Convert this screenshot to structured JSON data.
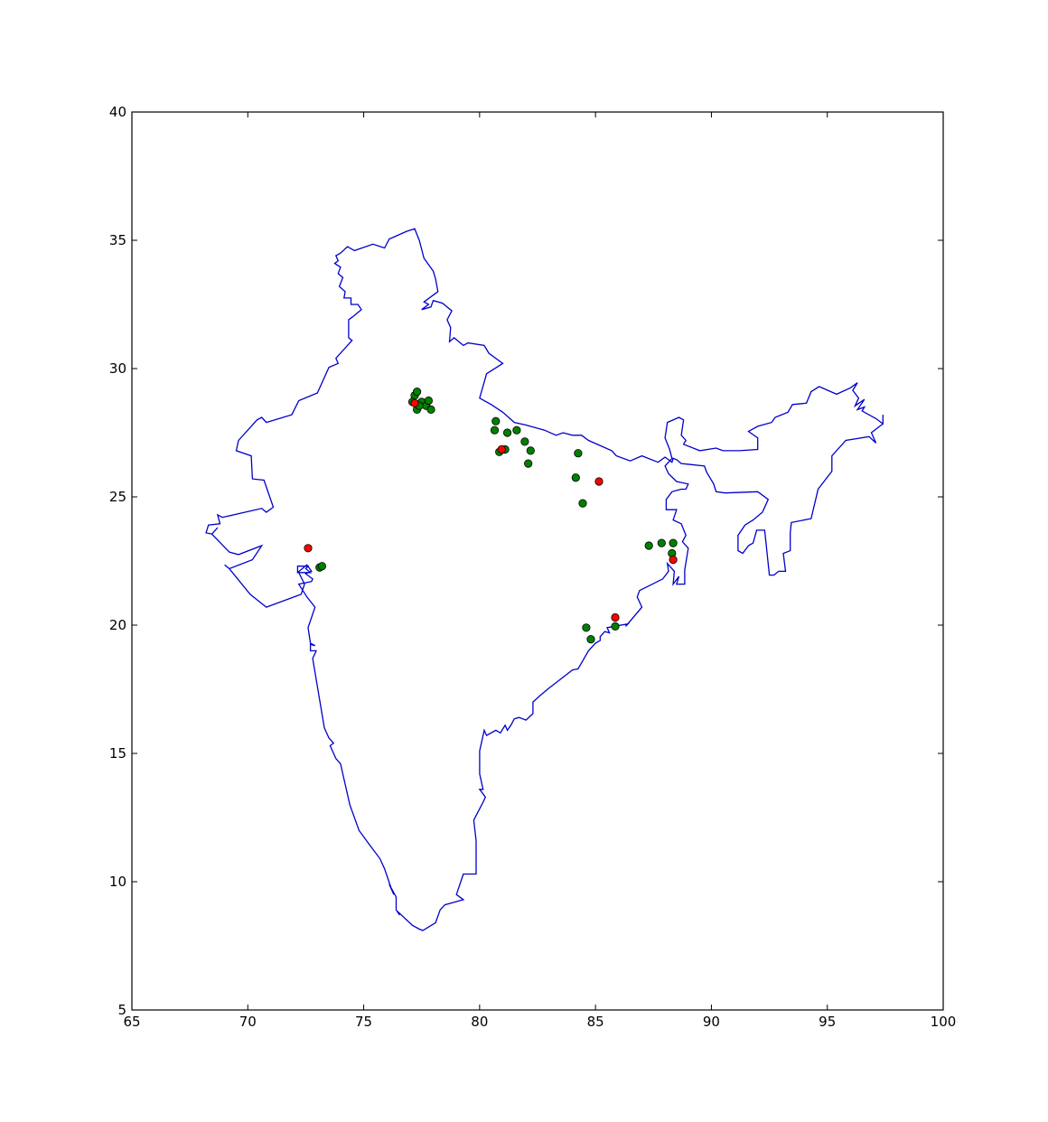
{
  "chart_data": {
    "type": "scatter",
    "xlim": [
      65,
      100
    ],
    "ylim": [
      5,
      40
    ],
    "x_ticks": [
      65,
      70,
      75,
      80,
      85,
      90,
      95,
      100
    ],
    "y_ticks": [
      5,
      10,
      15,
      20,
      25,
      30,
      35,
      40
    ],
    "grid": false,
    "outline_color": "#0000cc",
    "series": [
      {
        "color": "#008000",
        "points": [
          [
            77.2,
            28.95
          ],
          [
            77.3,
            29.1
          ],
          [
            77.1,
            28.7
          ],
          [
            77.3,
            28.4
          ],
          [
            77.5,
            28.7
          ],
          [
            77.7,
            28.55
          ],
          [
            77.8,
            28.75
          ],
          [
            77.9,
            28.4
          ],
          [
            77.4,
            28.55
          ],
          [
            80.7,
            27.95
          ],
          [
            80.65,
            27.6
          ],
          [
            81.2,
            27.5
          ],
          [
            81.6,
            27.6
          ],
          [
            81.95,
            27.15
          ],
          [
            82.2,
            26.8
          ],
          [
            82.1,
            26.3
          ],
          [
            81.1,
            26.85
          ],
          [
            80.85,
            26.75
          ],
          [
            84.25,
            26.7
          ],
          [
            84.15,
            25.75
          ],
          [
            84.45,
            24.75
          ],
          [
            73.1,
            22.25
          ],
          [
            73.2,
            22.3
          ],
          [
            87.3,
            23.1
          ],
          [
            87.85,
            23.2
          ],
          [
            88.35,
            23.2
          ],
          [
            88.3,
            22.8
          ],
          [
            84.6,
            19.9
          ],
          [
            84.8,
            19.45
          ],
          [
            85.85,
            19.95
          ]
        ]
      },
      {
        "color": "#ff0000",
        "points": [
          [
            77.2,
            28.65
          ],
          [
            80.95,
            26.85
          ],
          [
            85.15,
            25.6
          ],
          [
            72.6,
            23.0
          ],
          [
            88.35,
            22.55
          ],
          [
            85.85,
            20.3
          ]
        ]
      }
    ],
    "outline": [
      [
        74.0,
        34.5
      ],
      [
        73.8,
        34.4
      ],
      [
        73.9,
        34.2
      ],
      [
        73.75,
        34.1
      ],
      [
        74.0,
        33.95
      ],
      [
        73.9,
        33.7
      ],
      [
        74.1,
        33.55
      ],
      [
        73.95,
        33.2
      ],
      [
        74.2,
        33.0
      ],
      [
        74.15,
        32.75
      ],
      [
        74.45,
        32.75
      ],
      [
        74.45,
        32.5
      ],
      [
        74.75,
        32.5
      ],
      [
        74.9,
        32.3
      ],
      [
        74.5,
        32.0
      ],
      [
        74.35,
        31.9
      ],
      [
        74.35,
        31.2
      ],
      [
        74.5,
        31.1
      ],
      [
        73.8,
        30.4
      ],
      [
        73.9,
        30.2
      ],
      [
        73.5,
        30.05
      ],
      [
        73.0,
        29.05
      ],
      [
        72.2,
        28.75
      ],
      [
        71.9,
        28.2
      ],
      [
        70.8,
        27.9
      ],
      [
        70.6,
        28.1
      ],
      [
        70.4,
        28.0
      ],
      [
        69.6,
        27.2
      ],
      [
        69.5,
        26.8
      ],
      [
        70.15,
        26.6
      ],
      [
        70.2,
        25.7
      ],
      [
        70.7,
        25.65
      ],
      [
        71.1,
        24.6
      ],
      [
        70.8,
        24.4
      ],
      [
        70.6,
        24.55
      ],
      [
        68.9,
        24.2
      ],
      [
        68.7,
        24.3
      ],
      [
        68.8,
        23.95
      ],
      [
        68.3,
        23.9
      ],
      [
        68.2,
        23.6
      ],
      [
        68.45,
        23.55
      ],
      [
        68.7,
        23.8
      ],
      [
        68.45,
        23.55
      ],
      [
        69.2,
        22.85
      ],
      [
        69.6,
        22.75
      ],
      [
        70.6,
        23.1
      ],
      [
        70.2,
        22.55
      ],
      [
        69.2,
        22.2
      ],
      [
        69.0,
        22.35
      ],
      [
        69.2,
        22.2
      ],
      [
        70.1,
        21.2
      ],
      [
        70.8,
        20.7
      ],
      [
        72.3,
        21.2
      ],
      [
        72.45,
        21.6
      ],
      [
        72.2,
        22.05
      ],
      [
        72.7,
        22.05
      ],
      [
        72.5,
        22.2
      ],
      [
        72.6,
        22.3
      ],
      [
        72.15,
        22.3
      ],
      [
        72.15,
        22.05
      ],
      [
        72.55,
        22.35
      ],
      [
        72.75,
        22.1
      ],
      [
        72.5,
        22.0
      ],
      [
        72.8,
        21.8
      ],
      [
        72.75,
        21.7
      ],
      [
        72.2,
        21.6
      ],
      [
        72.55,
        21.1
      ],
      [
        72.9,
        20.7
      ],
      [
        72.6,
        19.9
      ],
      [
        72.7,
        19.3
      ],
      [
        72.9,
        19.2
      ],
      [
        72.7,
        19.25
      ],
      [
        72.7,
        19.0
      ],
      [
        72.9,
        19.0
      ],
      [
        72.95,
        19.0
      ],
      [
        72.8,
        18.7
      ],
      [
        73.3,
        16.0
      ],
      [
        73.5,
        15.6
      ],
      [
        73.7,
        15.4
      ],
      [
        73.55,
        15.3
      ],
      [
        73.8,
        14.8
      ],
      [
        74.0,
        14.6
      ],
      [
        74.4,
        13.0
      ],
      [
        74.8,
        12.0
      ],
      [
        75.2,
        11.5
      ],
      [
        75.7,
        10.9
      ],
      [
        75.9,
        10.5
      ],
      [
        76.2,
        9.7
      ],
      [
        76.3,
        9.5
      ],
      [
        76.1,
        9.9
      ],
      [
        76.4,
        9.4
      ],
      [
        76.4,
        8.9
      ],
      [
        76.55,
        8.7
      ],
      [
        76.45,
        8.85
      ],
      [
        77.1,
        8.3
      ],
      [
        77.4,
        8.15
      ],
      [
        77.55,
        8.1
      ],
      [
        78.1,
        8.4
      ],
      [
        78.3,
        8.9
      ],
      [
        78.5,
        9.1
      ],
      [
        78.9,
        9.2
      ],
      [
        79.3,
        9.3
      ],
      [
        79.0,
        9.5
      ],
      [
        79.3,
        10.3
      ],
      [
        79.85,
        10.3
      ],
      [
        79.85,
        11.6
      ],
      [
        79.75,
        12.4
      ],
      [
        80.15,
        13.1
      ],
      [
        80.25,
        13.3
      ],
      [
        80.0,
        13.6
      ],
      [
        80.15,
        13.6
      ],
      [
        80.0,
        14.2
      ],
      [
        80.0,
        15.1
      ],
      [
        80.2,
        15.9
      ],
      [
        80.3,
        15.7
      ],
      [
        80.7,
        15.9
      ],
      [
        80.9,
        15.8
      ],
      [
        81.1,
        16.1
      ],
      [
        81.2,
        15.9
      ],
      [
        81.35,
        16.1
      ],
      [
        81.5,
        16.35
      ],
      [
        81.7,
        16.4
      ],
      [
        82.0,
        16.3
      ],
      [
        82.3,
        16.55
      ],
      [
        82.3,
        17.0
      ],
      [
        82.6,
        17.25
      ],
      [
        83.0,
        17.55
      ],
      [
        83.5,
        17.9
      ],
      [
        84.0,
        18.25
      ],
      [
        84.25,
        18.3
      ],
      [
        84.7,
        19.0
      ],
      [
        85.0,
        19.3
      ],
      [
        85.2,
        19.4
      ],
      [
        85.2,
        19.55
      ],
      [
        85.4,
        19.75
      ],
      [
        85.6,
        19.7
      ],
      [
        85.5,
        19.9
      ],
      [
        86.4,
        20.05
      ],
      [
        86.3,
        19.95
      ],
      [
        87.0,
        20.7
      ],
      [
        86.8,
        21.1
      ],
      [
        86.9,
        21.35
      ],
      [
        87.9,
        21.8
      ],
      [
        88.15,
        22.1
      ],
      [
        88.1,
        22.4
      ],
      [
        88.4,
        22.1
      ],
      [
        88.35,
        21.6
      ],
      [
        88.6,
        21.9
      ],
      [
        88.5,
        21.6
      ],
      [
        88.85,
        21.6
      ],
      [
        88.85,
        22.15
      ],
      [
        89.0,
        23.0
      ],
      [
        88.75,
        23.25
      ],
      [
        88.9,
        23.5
      ],
      [
        88.7,
        23.95
      ],
      [
        88.35,
        24.1
      ],
      [
        88.5,
        24.5
      ],
      [
        88.05,
        24.5
      ],
      [
        88.05,
        24.9
      ],
      [
        88.3,
        25.2
      ],
      [
        88.7,
        25.3
      ],
      [
        88.9,
        25.3
      ],
      [
        89.0,
        25.5
      ],
      [
        88.5,
        25.6
      ],
      [
        88.15,
        25.9
      ],
      [
        88.0,
        26.2
      ],
      [
        88.3,
        26.5
      ],
      [
        88.2,
        26.85
      ],
      [
        88.0,
        27.3
      ],
      [
        88.1,
        27.9
      ],
      [
        88.6,
        28.1
      ],
      [
        88.8,
        28.0
      ],
      [
        88.7,
        27.4
      ],
      [
        88.9,
        27.2
      ],
      [
        88.8,
        27.05
      ],
      [
        89.5,
        26.8
      ],
      [
        90.2,
        26.9
      ],
      [
        90.5,
        26.8
      ],
      [
        91.2,
        26.8
      ],
      [
        92.0,
        26.85
      ],
      [
        92.0,
        27.3
      ],
      [
        91.6,
        27.55
      ],
      [
        92.0,
        27.75
      ],
      [
        92.6,
        27.9
      ],
      [
        92.75,
        28.1
      ],
      [
        93.3,
        28.3
      ],
      [
        93.5,
        28.6
      ],
      [
        94.1,
        28.65
      ],
      [
        94.3,
        29.1
      ],
      [
        94.65,
        29.3
      ],
      [
        95.4,
        29.0
      ],
      [
        96.0,
        29.25
      ],
      [
        96.3,
        29.45
      ],
      [
        96.1,
        29.15
      ],
      [
        96.35,
        28.85
      ],
      [
        96.2,
        28.55
      ],
      [
        96.6,
        28.8
      ],
      [
        96.3,
        28.4
      ],
      [
        96.6,
        28.5
      ],
      [
        96.5,
        28.35
      ],
      [
        97.1,
        28.05
      ],
      [
        97.4,
        27.85
      ],
      [
        97.4,
        28.2
      ],
      [
        97.4,
        27.85
      ],
      [
        96.9,
        27.5
      ],
      [
        97.1,
        27.1
      ],
      [
        96.8,
        27.35
      ],
      [
        95.8,
        27.2
      ],
      [
        95.2,
        26.6
      ],
      [
        95.2,
        26.0
      ],
      [
        94.6,
        25.3
      ],
      [
        94.55,
        25.1
      ],
      [
        94.3,
        24.15
      ],
      [
        93.45,
        24.0
      ],
      [
        93.4,
        23.6
      ],
      [
        93.4,
        22.9
      ],
      [
        93.1,
        22.8
      ],
      [
        93.2,
        22.1
      ],
      [
        92.9,
        22.1
      ],
      [
        92.7,
        21.95
      ],
      [
        92.5,
        21.95
      ],
      [
        92.3,
        23.7
      ],
      [
        91.95,
        23.7
      ],
      [
        91.8,
        23.2
      ],
      [
        91.6,
        23.1
      ],
      [
        91.35,
        22.8
      ],
      [
        91.15,
        22.9
      ],
      [
        91.15,
        23.5
      ],
      [
        91.45,
        23.9
      ],
      [
        91.8,
        24.1
      ],
      [
        92.2,
        24.4
      ],
      [
        92.45,
        24.9
      ],
      [
        92.0,
        25.2
      ],
      [
        90.6,
        25.15
      ],
      [
        90.2,
        25.2
      ],
      [
        90.1,
        25.5
      ],
      [
        89.8,
        25.95
      ],
      [
        89.7,
        26.2
      ],
      [
        88.7,
        26.3
      ],
      [
        88.5,
        26.45
      ],
      [
        88.35,
        26.5
      ],
      [
        88.3,
        26.35
      ],
      [
        88.0,
        26.55
      ],
      [
        87.7,
        26.35
      ],
      [
        87.0,
        26.6
      ],
      [
        86.5,
        26.4
      ],
      [
        85.9,
        26.6
      ],
      [
        85.7,
        26.8
      ],
      [
        84.7,
        27.2
      ],
      [
        84.4,
        27.4
      ],
      [
        84.0,
        27.4
      ],
      [
        83.6,
        27.5
      ],
      [
        83.3,
        27.4
      ],
      [
        82.8,
        27.6
      ],
      [
        82.0,
        27.8
      ],
      [
        81.5,
        27.9
      ],
      [
        81.0,
        28.3
      ],
      [
        80.5,
        28.6
      ],
      [
        80.0,
        28.85
      ],
      [
        80.3,
        29.8
      ],
      [
        81.0,
        30.2
      ],
      [
        80.4,
        30.6
      ],
      [
        80.2,
        30.9
      ],
      [
        79.5,
        31.0
      ],
      [
        79.3,
        30.9
      ],
      [
        78.9,
        31.2
      ],
      [
        78.7,
        31.05
      ],
      [
        78.75,
        31.6
      ],
      [
        78.6,
        31.9
      ],
      [
        78.8,
        32.25
      ],
      [
        78.4,
        32.55
      ],
      [
        78.0,
        32.65
      ],
      [
        77.9,
        32.4
      ],
      [
        77.5,
        32.3
      ],
      [
        77.8,
        32.5
      ],
      [
        77.6,
        32.6
      ],
      [
        78.2,
        33.0
      ],
      [
        78.1,
        33.5
      ],
      [
        78.0,
        33.8
      ],
      [
        77.6,
        34.3
      ],
      [
        77.4,
        35.0
      ],
      [
        77.2,
        35.45
      ],
      [
        76.85,
        35.35
      ],
      [
        76.1,
        35.05
      ],
      [
        75.9,
        34.7
      ],
      [
        75.4,
        34.85
      ],
      [
        74.6,
        34.6
      ],
      [
        74.3,
        34.75
      ],
      [
        74.0,
        34.5
      ]
    ]
  }
}
